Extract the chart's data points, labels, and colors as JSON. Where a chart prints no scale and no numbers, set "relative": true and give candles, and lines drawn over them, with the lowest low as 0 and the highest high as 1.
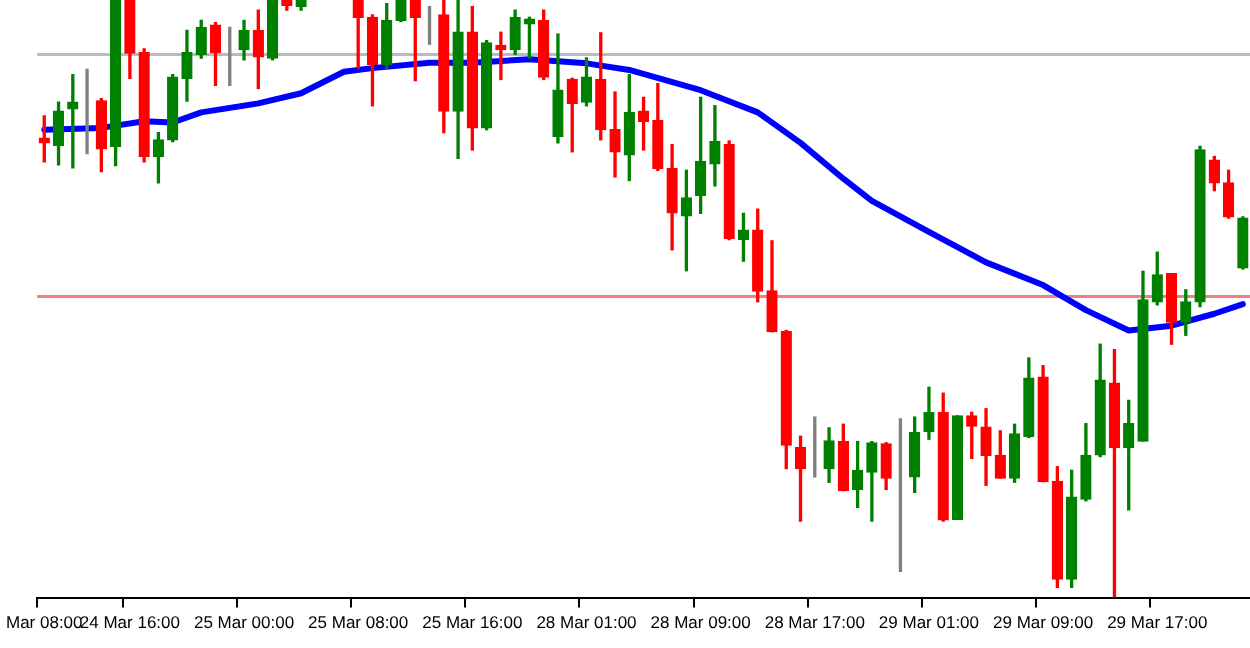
{
  "chart_data": {
    "type": "candlestick",
    "relative": true,
    "categories": [
      "Mar 08:00",
      null,
      null,
      null,
      null,
      null,
      "24 Mar 16:00",
      null,
      null,
      null,
      null,
      null,
      null,
      null,
      "25 Mar 00:00",
      null,
      null,
      null,
      null,
      null,
      null,
      null,
      "25 Mar 08:00",
      null,
      null,
      null,
      null,
      null,
      null,
      null,
      "25 Mar 16:00",
      null,
      null,
      null,
      null,
      null,
      null,
      null,
      "28 Mar 01:00",
      null,
      null,
      null,
      null,
      null,
      null,
      null,
      "28 Mar 09:00",
      null,
      null,
      null,
      null,
      null,
      null,
      null,
      "28 Mar 17:00",
      null,
      null,
      null,
      null,
      null,
      null,
      null,
      "29 Mar 01:00",
      null,
      null,
      null,
      null,
      null,
      null,
      null,
      "29 Mar 09:00",
      null,
      null,
      null,
      null,
      null,
      null,
      null,
      "29 Mar 17:00",
      null,
      null,
      null,
      null,
      null,
      null
    ],
    "ohlc": [
      [
        0.769,
        0.806,
        0.729,
        0.761
      ],
      [
        0.757,
        0.829,
        0.724,
        0.814
      ],
      [
        0.818,
        0.875,
        0.719,
        0.829
      ],
      [
        0.831,
        0.884,
        0.743,
        0.831
      ],
      [
        0.831,
        0.835,
        0.713,
        0.751
      ],
      [
        0.755,
        1,
        0.723,
        1
      ],
      [
        1,
        1,
        0.869,
        0.911
      ],
      [
        0.912,
        0.918,
        0.729,
        0.738
      ],
      [
        0.738,
        0.778,
        0.694,
        0.766
      ],
      [
        0.766,
        0.875,
        0.763,
        0.871
      ],
      [
        0.869,
        0.949,
        0.831,
        0.912
      ],
      [
        0.909,
        0.966,
        0.903,
        0.954
      ],
      [
        0.958,
        0.962,
        0.857,
        0.912
      ],
      [
        0.914,
        0.954,
        0.857,
        0.914
      ],
      [
        0.917,
        0.966,
        0.9,
        0.949
      ],
      [
        0.949,
        0.983,
        0.852,
        0.905
      ],
      [
        0.903,
        1,
        0.9,
        1
      ],
      [
        1,
        1,
        0.983,
        0.991
      ],
      [
        0.989,
        1,
        0.983,
        1
      ],
      null,
      null,
      null,
      [
        1,
        1,
        0.886,
        0.971
      ],
      [
        0.971,
        0.975,
        0.823,
        0.892
      ],
      [
        0.892,
        0.994,
        0.886,
        0.966
      ],
      [
        0.966,
        1,
        0.964,
        1
      ],
      [
        1,
        1,
        0.865,
        0.971
      ],
      [
        0.975,
        0.989,
        0.926,
        0.975
      ],
      [
        0.975,
        1,
        0.778,
        0.814
      ],
      [
        0.814,
        1,
        0.735,
        0.946
      ],
      [
        0.946,
        0.989,
        0.749,
        0.786
      ],
      [
        0.786,
        0.932,
        0.783,
        0.928
      ],
      [
        0.924,
        0.946,
        0.867,
        0.917
      ],
      [
        0.917,
        0.983,
        0.909,
        0.971
      ],
      [
        0.96,
        0.971,
        0.903,
        0.968
      ],
      [
        0.966,
        0.983,
        0.867,
        0.871
      ],
      [
        0.772,
        0.943,
        0.761,
        0.849
      ],
      [
        0.867,
        0.869,
        0.746,
        0.827
      ],
      [
        0.829,
        0.903,
        0.823,
        0.871
      ],
      [
        0.867,
        0.945,
        0.766,
        0.783
      ],
      [
        0.783,
        0.846,
        0.704,
        0.746
      ],
      [
        0.741,
        0.875,
        0.698,
        0.812
      ],
      [
        0.814,
        0.837,
        0.749,
        0.797
      ],
      [
        0.798,
        0.86,
        0.715,
        0.718
      ],
      [
        0.718,
        0.758,
        0.582,
        0.644
      ],
      [
        0.639,
        0.715,
        0.547,
        0.669
      ],
      [
        0.673,
        0.837,
        0.643,
        0.73
      ],
      [
        0.726,
        0.823,
        0.689,
        0.763
      ],
      [
        0.758,
        0.764,
        0.599,
        0.601
      ],
      [
        0.599,
        0.643,
        0.563,
        0.615
      ],
      [
        0.615,
        0.65,
        0.495,
        0.513
      ],
      [
        0.513,
        0.597,
        0.445,
        0.445
      ],
      [
        0.445,
        0.447,
        0.216,
        0.255
      ],
      [
        0.251,
        0.27,
        0.128,
        0.216
      ],
      [
        0.216,
        0.302,
        0.202,
        0.216
      ],
      [
        0.216,
        0.284,
        0.193,
        0.262
      ],
      [
        0.261,
        0.29,
        0.179,
        0.179
      ],
      [
        0.181,
        0.261,
        0.151,
        0.213
      ],
      [
        0.21,
        0.261,
        0.128,
        0.259
      ],
      [
        0.257,
        0.259,
        0.181,
        0.2
      ],
      [
        0.202,
        0.299,
        0.044,
        0.202
      ],
      [
        0.202,
        0.302,
        0.176,
        0.276
      ],
      [
        0.278,
        0.352,
        0.265,
        0.31
      ],
      [
        0.31,
        0.342,
        0.128,
        0.13
      ],
      [
        0.131,
        0.304,
        0.131,
        0.304
      ],
      [
        0.304,
        0.31,
        0.233,
        0.287
      ],
      [
        0.285,
        0.316,
        0.188,
        0.238
      ],
      [
        0.238,
        0.279,
        0.2,
        0.2
      ],
      [
        0.2,
        0.29,
        0.193,
        0.274
      ],
      [
        0.27,
        0.401,
        0.268,
        0.367
      ],
      [
        0.369,
        0.388,
        0.194,
        0.194
      ],
      [
        0.194,
        0.219,
        0.017,
        0.031
      ],
      [
        0.031,
        0.213,
        0.017,
        0.168
      ],
      [
        0.165,
        0.291,
        0.162,
        0.238
      ],
      [
        0.239,
        0.424,
        0.236,
        0.364
      ],
      [
        0.359,
        0.415,
        0,
        0.251
      ],
      [
        0.251,
        0.33,
        0.147,
        0.291
      ],
      [
        0.262,
        0.546,
        0.262,
        0.498
      ],
      [
        0.495,
        0.578,
        0.49,
        0.54
      ],
      [
        0.542,
        0.542,
        0.424,
        0.461
      ],
      [
        0.461,
        0.515,
        0.439,
        0.495
      ],
      [
        0.495,
        0.755,
        0.487,
        0.749
      ],
      [
        0.732,
        0.738,
        0.681,
        0.694
      ],
      [
        0.694,
        0.715,
        0.635,
        0.637
      ],
      [
        0.552,
        0.637,
        0.55,
        0.635
      ]
    ],
    "colors": [
      "#ff0000",
      "#008000",
      "#008000",
      "#808080",
      "#ff0000",
      "#008000",
      "#ff0000",
      "#ff0000",
      "#008000",
      "#008000",
      "#008000",
      "#008000",
      "#ff0000",
      "#808080",
      "#008000",
      "#ff0000",
      "#008000",
      "#ff0000",
      "#008000",
      null,
      null,
      null,
      "#ff0000",
      "#ff0000",
      "#008000",
      "#008000",
      "#ff0000",
      "#808080",
      "#ff0000",
      "#008000",
      "#ff0000",
      "#008000",
      "#ff0000",
      "#008000",
      "#008000",
      "#ff0000",
      "#008000",
      "#ff0000",
      "#008000",
      "#ff0000",
      "#ff0000",
      "#008000",
      "#ff0000",
      "#ff0000",
      "#ff0000",
      "#008000",
      "#008000",
      "#008000",
      "#ff0000",
      "#008000",
      "#ff0000",
      "#ff0000",
      "#ff0000",
      "#ff0000",
      "#808080",
      "#008000",
      "#ff0000",
      "#008000",
      "#008000",
      "#ff0000",
      "#808080",
      "#008000",
      "#008000",
      "#ff0000",
      "#008000",
      "#ff0000",
      "#ff0000",
      "#ff0000",
      "#008000",
      "#008000",
      "#ff0000",
      "#ff0000",
      "#008000",
      "#008000",
      "#008000",
      "#ff0000",
      "#008000",
      "#008000",
      "#008000",
      "#ff0000",
      "#008000",
      "#008000",
      "#ff0000",
      "#ff0000",
      "#008000"
    ],
    "series": [
      {
        "type": "line",
        "color": "#0000ff",
        "values": [
          0.783,
          null,
          null,
          null,
          0.786,
          null,
          null,
          0.797,
          null,
          0.795,
          null,
          0.812,
          null,
          null,
          null,
          0.827,
          null,
          null,
          0.844,
          null,
          null,
          0.88,
          null,
          0.886,
          null,
          null,
          null,
          0.895,
          null,
          null,
          0.895,
          null,
          null,
          null,
          0.901,
          null,
          null,
          null,
          0.894,
          null,
          null,
          0.883,
          null,
          null,
          null,
          null,
          0.849,
          null,
          null,
          null,
          0.812,
          null,
          null,
          0.761,
          null,
          null,
          0.701,
          null,
          0.664,
          null,
          null,
          null,
          0.612,
          null,
          null,
          null,
          0.561,
          null,
          null,
          null,
          0.523,
          null,
          null,
          0.481,
          null,
          null,
          0.447,
          null,
          null,
          0.455,
          null,
          null,
          0.475,
          null,
          0.491
        ]
      }
    ],
    "ref_lines": [
      {
        "axis": "y",
        "value": 0.909,
        "color": "#b4bcc4"
      },
      {
        "axis": "y",
        "value": 0.504,
        "color": "#f08080"
      }
    ]
  }
}
